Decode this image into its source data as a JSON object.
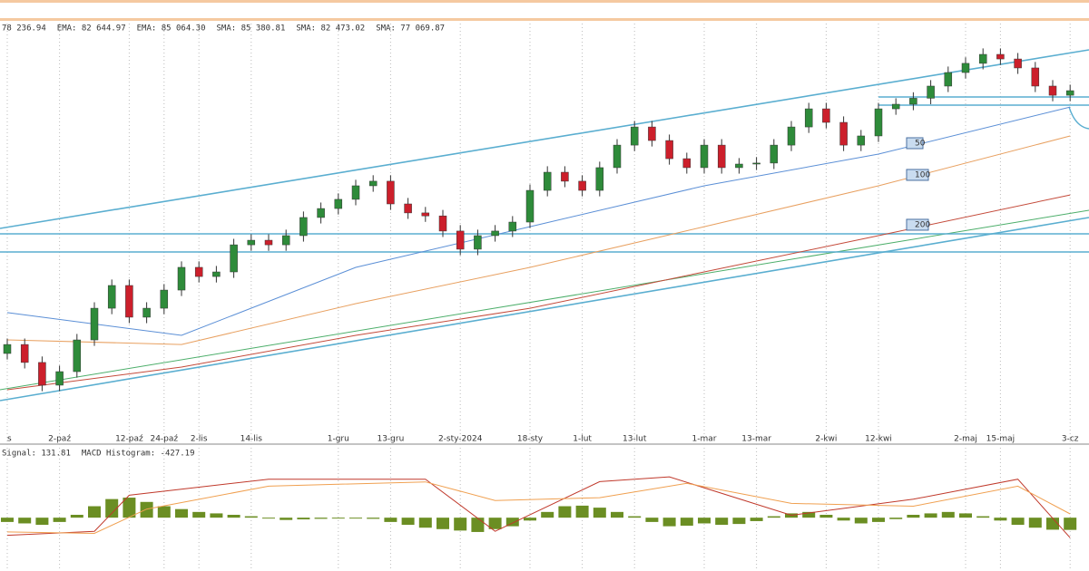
{
  "chart_data": [
    {
      "type": "candlestick",
      "header": [
        {
          "text": "78 236.94",
          "color": "#555555"
        },
        {
          "text": "EMA: 82 644.97",
          "color": "#e0892a"
        },
        {
          "text": "EMA: 85 064.30",
          "color": "#3a7bd5"
        },
        {
          "text": "SMA: 85 380.81",
          "color": "#4aa3c8"
        },
        {
          "text": "SMA: 82 473.02",
          "color": "#c0392b"
        },
        {
          "text": "SMA: 77 069.87",
          "color": "#3aa655"
        }
      ],
      "categories": [
        "s",
        null,
        null,
        "2-paź",
        null,
        null,
        null,
        "12-paź",
        null,
        "24-paź",
        null,
        "2-lis",
        null,
        null,
        "14-lis",
        null,
        null,
        null,
        null,
        "1-gru",
        null,
        null,
        "13-gru",
        null,
        null,
        null,
        "2-sty-2024",
        null,
        null,
        null,
        "18-sty",
        null,
        null,
        "1-lut",
        null,
        null,
        "13-lut",
        null,
        null,
        null,
        "1-mar",
        null,
        null,
        "13-mar",
        null,
        null,
        null,
        "2-kwi",
        null,
        null,
        "12-kwi",
        null,
        null,
        null,
        null,
        "2-maj",
        null,
        "15-maj",
        null,
        null,
        null,
        "3-cz"
      ],
      "open": [
        74000,
        74450,
        73550,
        72410,
        73090,
        74680,
        76270,
        77410,
        75820,
        76270,
        77180,
        78320,
        77860,
        78090,
        79450,
        79680,
        79450,
        79910,
        80820,
        81270,
        81730,
        82410,
        82640,
        81500,
        81050,
        80900,
        80140,
        79230,
        79910,
        80140,
        80590,
        82180,
        83090,
        82640,
        82180,
        83320,
        84450,
        85360,
        84680,
        83770,
        83320,
        84450,
        83320,
        83500,
        83550,
        84450,
        85360,
        86270,
        85590,
        84450,
        84910,
        86270,
        86500,
        86800,
        87410,
        88090,
        88550,
        89000,
        88770,
        88320,
        87410,
        86950
      ],
      "high": [
        74750,
        74750,
        73850,
        73390,
        74980,
        76570,
        77710,
        77710,
        76570,
        77480,
        78620,
        78620,
        78390,
        79750,
        79980,
        79980,
        80210,
        81120,
        81570,
        82030,
        82710,
        82940,
        82940,
        81800,
        81350,
        81200,
        80440,
        80210,
        80440,
        80890,
        82480,
        83390,
        83390,
        82940,
        83620,
        84750,
        85660,
        85660,
        84980,
        84070,
        84750,
        84750,
        83800,
        83850,
        84750,
        85660,
        86570,
        86570,
        85890,
        85210,
        86570,
        86800,
        87100,
        87710,
        88390,
        88850,
        89300,
        89300,
        89070,
        88620,
        87710,
        87480
      ],
      "low": [
        73700,
        73250,
        72110,
        72110,
        72790,
        74380,
        75970,
        75520,
        75520,
        75970,
        76880,
        77560,
        77560,
        77790,
        79150,
        79150,
        79150,
        79610,
        80520,
        80970,
        81430,
        82110,
        81200,
        80750,
        80600,
        79840,
        78930,
        78930,
        79610,
        79840,
        80290,
        81880,
        82340,
        81880,
        81880,
        83020,
        84150,
        84380,
        83470,
        83020,
        83020,
        83020,
        83020,
        83200,
        83250,
        84150,
        85060,
        85290,
        84150,
        84150,
        84610,
        85970,
        86200,
        86500,
        87110,
        87790,
        88250,
        88470,
        88020,
        87110,
        86650,
        86650
      ],
      "close": [
        74450,
        73550,
        72410,
        73090,
        74680,
        76270,
        77410,
        75820,
        76270,
        77180,
        78320,
        77860,
        78090,
        79450,
        79680,
        79450,
        79910,
        80820,
        81270,
        81730,
        82410,
        82640,
        81500,
        81050,
        80900,
        80140,
        79230,
        79910,
        80140,
        80590,
        82180,
        83090,
        82640,
        82180,
        83320,
        84450,
        85360,
        84680,
        83770,
        83320,
        84450,
        83320,
        83500,
        83550,
        84450,
        85360,
        86270,
        85590,
        84450,
        84910,
        86270,
        86500,
        86800,
        87410,
        88090,
        88550,
        89000,
        88770,
        88320,
        87410,
        86950,
        87180
      ],
      "bull_color": "#2e8b3a",
      "bear_color": "#cc1f2b",
      "ylim": [
        70000,
        90000
      ],
      "series": [
        {
          "label": "50",
          "color": "#5b8fd6",
          "x": [
            0,
            10,
            20,
            30,
            40,
            50,
            61
          ],
          "values": [
            76050,
            74910,
            78320,
            80360,
            82410,
            84000,
            86360
          ]
        },
        {
          "label": "100",
          "color": "#e8a060",
          "x": [
            0,
            10,
            20,
            30,
            40,
            50,
            61
          ],
          "values": [
            74680,
            74450,
            76500,
            78320,
            80360,
            82410,
            84910
          ]
        },
        {
          "label": "200",
          "color": "#c44a3a",
          "x": [
            0,
            10,
            20,
            30,
            40,
            50,
            61
          ],
          "values": [
            72180,
            73320,
            74910,
            76270,
            78090,
            79910,
            81950
          ]
        }
      ]
    },
    {
      "type": "macd",
      "header": [
        {
          "text": "Signal: 131.81",
          "color": "#e0892a"
        },
        {
          "text": "MACD Histogram: -427.19",
          "color": "#6b8e23"
        }
      ],
      "histogram": [
        -150,
        -200,
        -250,
        -150,
        100,
        400,
        650,
        700,
        550,
        400,
        300,
        200,
        150,
        100,
        50,
        -20,
        -80,
        -60,
        -40,
        -30,
        -20,
        -40,
        -150,
        -250,
        -350,
        -400,
        -450,
        -500,
        -400,
        -300,
        -100,
        200,
        400,
        420,
        350,
        200,
        50,
        -150,
        -300,
        -280,
        -200,
        -250,
        -220,
        -120,
        50,
        150,
        200,
        100,
        -100,
        -200,
        -150,
        -50,
        100,
        150,
        200,
        150,
        50,
        -100,
        -250,
        -350,
        -420,
        -427.19
      ],
      "hist_color": "#6b8e23",
      "ylim": [
        -1800,
        2000
      ],
      "series": [
        {
          "color": "#c0392b",
          "x": [
            0,
            5,
            7,
            15,
            24,
            28,
            34,
            38,
            45,
            52,
            58,
            61
          ],
          "values": [
            -616,
            -476,
            784,
            1344,
            1344,
            -476,
            1260,
            1428,
            84,
            644,
            1344,
            -700
          ]
        },
        {
          "color": "#f0a050",
          "x": [
            0,
            5,
            8,
            15,
            24,
            28,
            34,
            39,
            45,
            52,
            58,
            61
          ],
          "values": [
            -500,
            -550,
            300,
            1100,
            1250,
            600,
            700,
            1200,
            500,
            400,
            1100,
            131.81
          ]
        }
      ]
    }
  ]
}
